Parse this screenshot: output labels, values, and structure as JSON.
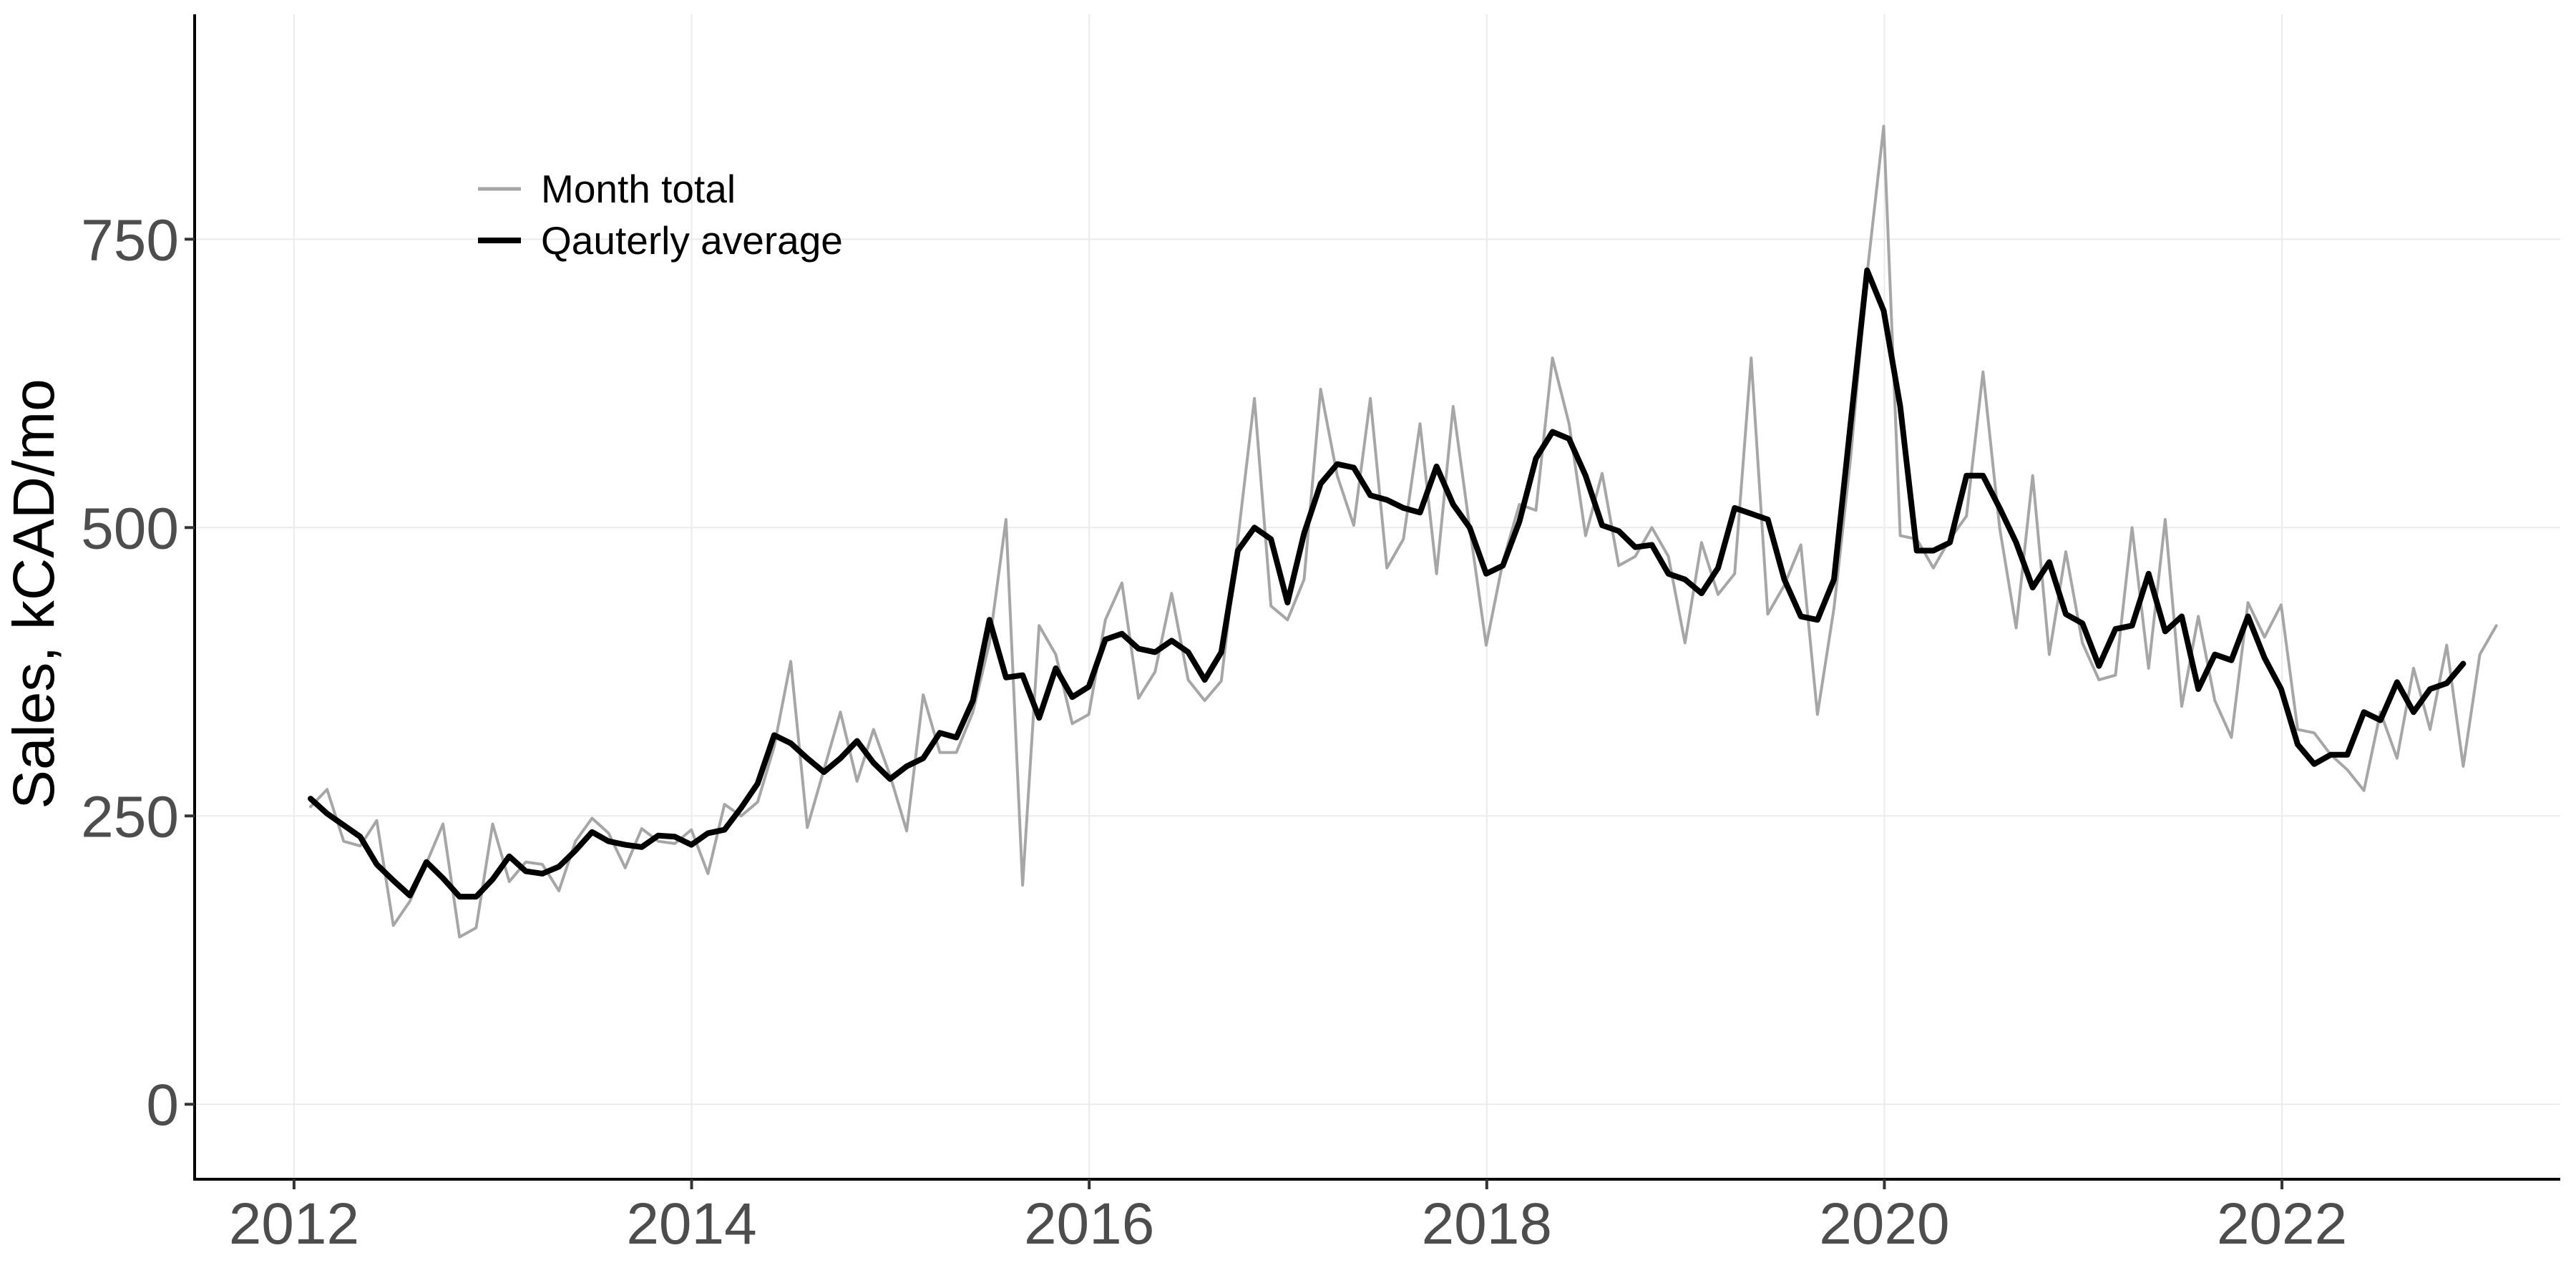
{
  "chart_data": {
    "type": "line",
    "title": "",
    "xlabel": "",
    "ylabel": "Sales, kCAD/mo",
    "xlim": [
      2011.5,
      2023.4
    ],
    "ylim": [
      -65,
      945
    ],
    "x_ticks": [
      2012,
      2014,
      2016,
      2018,
      2020,
      2022
    ],
    "y_ticks": [
      0,
      250,
      500,
      750
    ],
    "grid": true,
    "legend": {
      "placement": "top-left",
      "entries": [
        "Month total",
        "Qauterly average"
      ]
    },
    "x_start": 2012.083,
    "x_step": 0.0833,
    "series": [
      {
        "name": "Month total",
        "color": "#a6a6a6",
        "values": [
          258,
          273,
          228,
          224,
          246,
          155,
          176,
          209,
          243,
          145,
          153,
          243,
          193,
          210,
          208,
          185,
          228,
          248,
          235,
          205,
          239,
          228,
          226,
          238,
          200,
          260,
          250,
          262,
          310,
          384,
          240,
          290,
          340,
          280,
          325,
          285,
          237,
          355,
          305,
          305,
          340,
          400,
          507,
          190,
          415,
          390,
          330,
          338,
          420,
          452,
          352,
          375,
          443,
          368,
          350,
          367,
          490,
          612,
          432,
          420,
          455,
          620,
          545,
          502,
          612,
          465,
          490,
          590,
          460,
          605,
          500,
          398,
          470,
          520,
          515,
          647,
          590,
          493,
          547,
          467,
          475,
          500,
          475,
          400,
          487,
          442,
          460,
          647,
          425,
          450,
          485,
          338,
          430,
          560,
          720,
          848,
          493,
          490,
          465,
          490,
          510,
          635,
          500,
          413,
          545,
          390,
          479,
          400,
          368,
          372,
          500,
          378,
          507,
          345,
          423,
          350,
          318,
          435,
          405,
          433,
          325,
          322,
          303,
          290,
          272,
          340,
          300,
          378,
          325,
          398,
          293,
          390,
          415
        ]
      },
      {
        "name": "Qauterly average",
        "color": "#000000",
        "values": [
          265,
          252,
          242,
          232,
          208,
          194,
          181,
          210,
          196,
          180,
          180,
          195,
          215,
          202,
          200,
          206,
          220,
          236,
          228,
          225,
          223,
          233,
          232,
          225,
          235,
          238,
          257,
          278,
          320,
          313,
          300,
          288,
          300,
          315,
          296,
          282,
          293,
          300,
          322,
          318,
          350,
          420,
          370,
          372,
          335,
          378,
          353,
          362,
          403,
          408,
          395,
          392,
          402,
          392,
          368,
          392,
          480,
          500,
          490,
          435,
          495,
          538,
          555,
          552,
          528,
          524,
          517,
          513,
          553,
          520,
          500,
          460,
          467,
          505,
          560,
          583,
          577,
          545,
          502,
          497,
          483,
          485,
          460,
          455,
          443,
          465,
          517,
          512,
          507,
          455,
          423,
          420,
          455,
          590,
          723,
          688,
          605,
          480,
          480,
          487,
          545,
          545,
          517,
          487,
          448,
          470,
          425,
          417,
          380,
          412,
          415,
          460,
          410,
          423,
          360,
          390,
          385,
          423,
          387,
          360,
          312,
          295,
          303,
          303,
          340,
          333,
          366,
          340,
          360,
          365,
          382
        ]
      }
    ]
  }
}
